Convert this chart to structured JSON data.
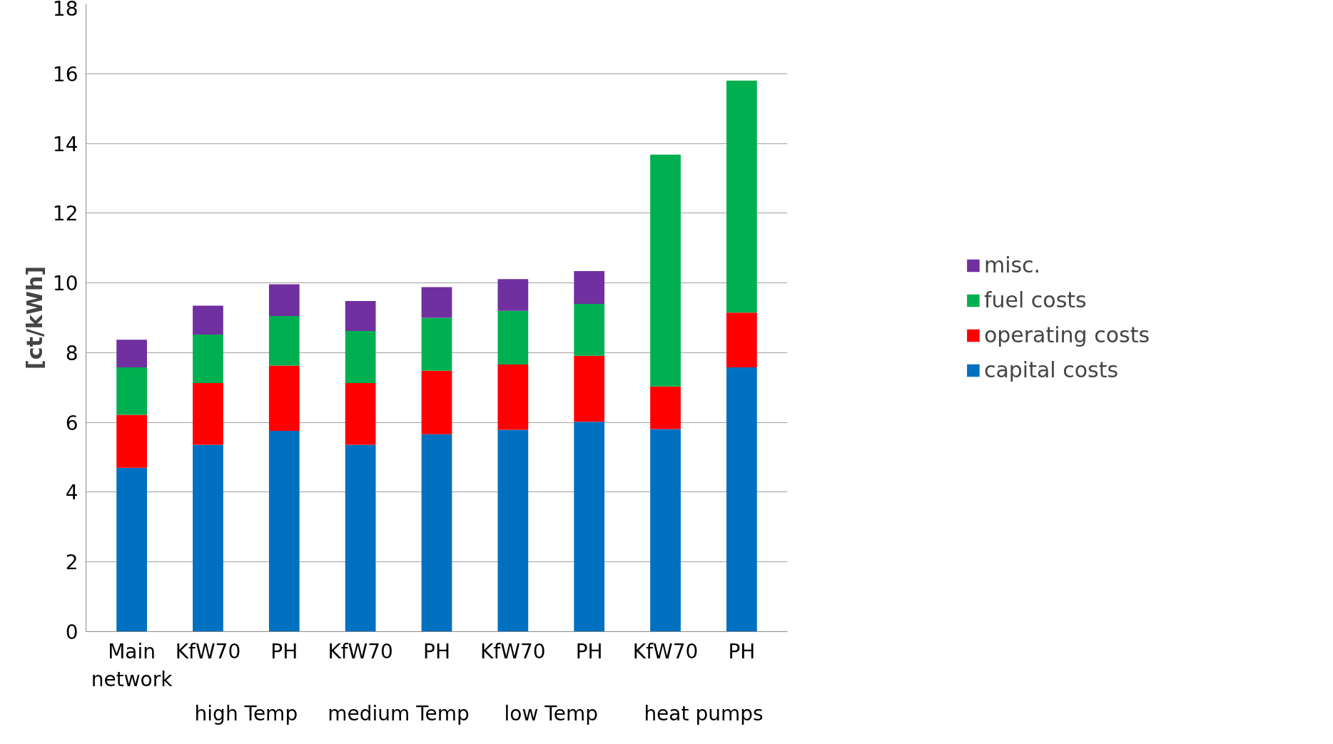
{
  "chart_data": {
    "type": "bar",
    "stacked": true,
    "ylabel": "[ct/kWh]",
    "categories": [
      "Main network",
      "KfW70",
      "PH",
      "KfW70",
      "PH",
      "KfW70",
      "PH",
      "KfW70",
      "PH"
    ],
    "series": [
      {
        "name": "capital costs",
        "color": "#0070c0",
        "values": [
          4.7,
          5.36,
          5.76,
          5.36,
          5.66,
          5.79,
          6.02,
          5.81,
          7.58
        ]
      },
      {
        "name": "operating costs",
        "color": "#ff0000",
        "values": [
          1.52,
          1.77,
          1.87,
          1.77,
          1.82,
          1.87,
          1.89,
          1.22,
          1.57
        ]
      },
      {
        "name": "fuel costs",
        "color": "#00b050",
        "values": [
          1.36,
          1.39,
          1.42,
          1.49,
          1.52,
          1.54,
          1.49,
          6.65,
          6.65
        ]
      },
      {
        "name": "misc.",
        "color": "#7030a0",
        "values": [
          0.79,
          0.83,
          0.91,
          0.86,
          0.88,
          0.91,
          0.94,
          null,
          null
        ]
      }
    ],
    "annotations": [
      "high Temp",
      "medium Temp",
      "low Temp",
      "heat pumps"
    ],
    "ylim": [
      0,
      18
    ],
    "yticks": [
      0,
      2,
      4,
      6,
      8,
      10,
      12,
      14,
      16,
      18
    ],
    "grid": "y",
    "legend": "right"
  }
}
